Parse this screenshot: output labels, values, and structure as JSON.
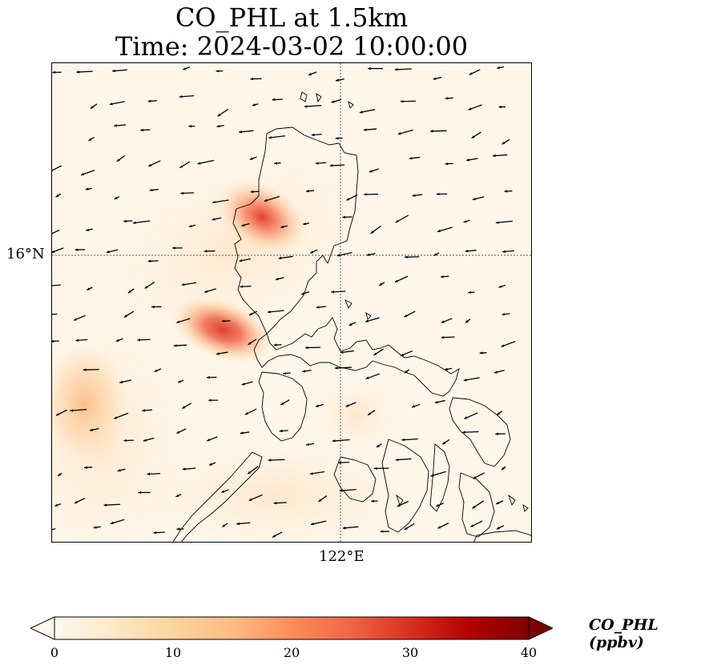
{
  "title": {
    "line1": "CO_PHL at 1.5km",
    "line2": "Time: 2024-03-02 10:00:00"
  },
  "map": {
    "gridlines": "dotted",
    "lat_label": "16°N",
    "lon_label": "122°E"
  },
  "colorbar": {
    "label": "CO_PHL (ppbv)",
    "colormap": "OrRd",
    "min": 0,
    "max": 40,
    "extend": "both",
    "ticks": [
      "0",
      "10",
      "20",
      "30",
      "40"
    ],
    "colors": [
      "#fff7ec",
      "#fee8c8",
      "#fdd49e",
      "#fdbb84",
      "#fc8d59",
      "#ef6548",
      "#d7301f",
      "#b30000",
      "#7f0000"
    ]
  },
  "concentration_hotspots": [
    {
      "location": "west coast of northern Luzon",
      "value_ppbv": 22
    },
    {
      "location": "west of central Luzon",
      "value_ppbv": 26
    },
    {
      "location": "open sea west",
      "value_ppbv": 12
    }
  ],
  "wind_vectors": "arrows predominantly from the northeast"
}
